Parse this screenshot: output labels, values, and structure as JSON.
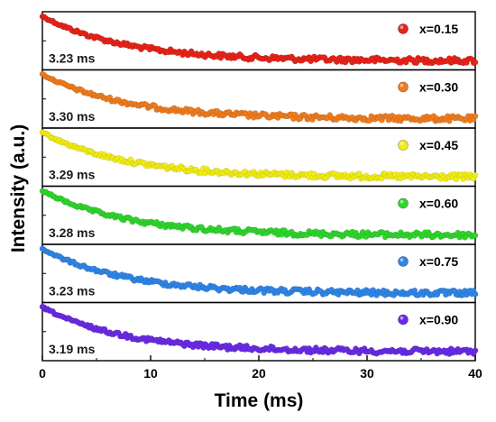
{
  "chart_data": {
    "type": "scatter",
    "xlabel": "Time (ms)",
    "ylabel": "Intensity (a.u.)",
    "xlim": [
      0,
      40
    ],
    "x_ticks": [
      "0",
      "10",
      "20",
      "30",
      "40"
    ],
    "grid": false,
    "layout": "stacked-panels",
    "legend_position": "top-right of each panel",
    "series": [
      {
        "name": "x=0.15",
        "lifetime_label": "3.23 ms",
        "lifetime": 3.23,
        "color": "#e8231a"
      },
      {
        "name": "x=0.30",
        "lifetime_label": "3.30 ms",
        "lifetime": 3.3,
        "color": "#f07c1e"
      },
      {
        "name": "x=0.45",
        "lifetime_label": "3.29 ms",
        "lifetime": 3.29,
        "color": "#f2ee12"
      },
      {
        "name": "x=0.60",
        "lifetime_label": "3.28 ms",
        "lifetime": 3.28,
        "color": "#2fd62c"
      },
      {
        "name": "x=0.75",
        "lifetime_label": "3.23 ms",
        "lifetime": 3.23,
        "color": "#2f86e8"
      },
      {
        "name": "x=0.90",
        "lifetime_label": "3.19 ms",
        "lifetime": 3.19,
        "color": "#6a2ae6"
      }
    ]
  }
}
